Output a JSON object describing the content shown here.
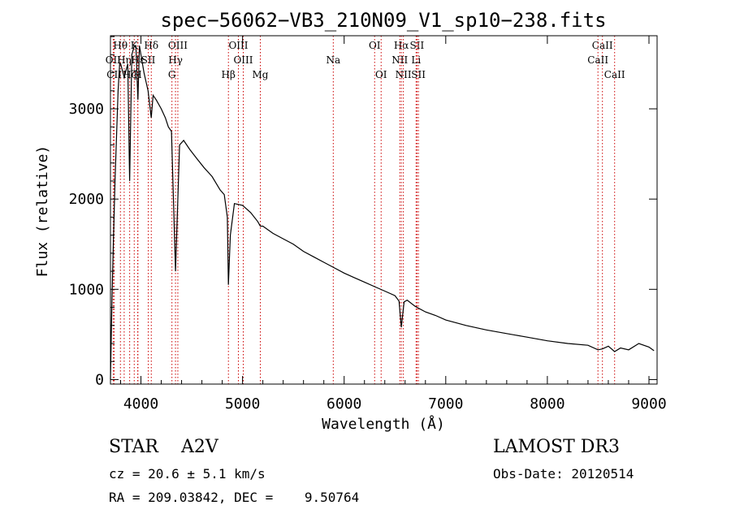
{
  "chart_data": {
    "type": "line",
    "title": "spec−56062−VB3_210N09_V1_sp10−238.fits",
    "xlabel": "Wavelength (Å)",
    "ylabel": "Flux (relative)",
    "xlim": [
      3700,
      9080
    ],
    "ylim": [
      -50,
      3810
    ],
    "xticks": [
      4000,
      5000,
      6000,
      7000,
      8000,
      9000
    ],
    "yticks": [
      0,
      1000,
      2000,
      3000
    ],
    "series": [
      {
        "name": "spectrum",
        "x": [
          3700,
          3715,
          3730,
          3745,
          3760,
          3775,
          3790,
          3800,
          3835,
          3870,
          3889,
          3910,
          3935,
          3950,
          3970,
          3985,
          4000,
          4030,
          4070,
          4101,
          4120,
          4150,
          4200,
          4240,
          4270,
          4300,
          4340,
          4380,
          4420,
          4480,
          4550,
          4620,
          4700,
          4780,
          4820,
          4850,
          4861,
          4880,
          4920,
          5000,
          5080,
          5150,
          5175,
          5200,
          5300,
          5400,
          5500,
          5600,
          5700,
          5800,
          5900,
          6000,
          6100,
          6200,
          6300,
          6400,
          6500,
          6540,
          6563,
          6590,
          6620,
          6700,
          6800,
          6900,
          7000,
          7200,
          7400,
          7600,
          7800,
          8000,
          8200,
          8400,
          8498,
          8542,
          8600,
          8662,
          8720,
          8800,
          8900,
          9000,
          9050
        ],
        "y": [
          0,
          900,
          1600,
          2200,
          2700,
          3200,
          3500,
          3500,
          3350,
          3500,
          2200,
          3600,
          3700,
          3700,
          3100,
          3700,
          3600,
          3400,
          3200,
          2900,
          3150,
          3100,
          3000,
          2900,
          2800,
          2750,
          1200,
          2600,
          2650,
          2550,
          2450,
          2350,
          2250,
          2100,
          2050,
          1800,
          1050,
          1600,
          1950,
          1930,
          1850,
          1750,
          1700,
          1700,
          1620,
          1560,
          1500,
          1420,
          1360,
          1300,
          1240,
          1180,
          1130,
          1080,
          1030,
          980,
          930,
          870,
          580,
          860,
          880,
          810,
          750,
          710,
          660,
          600,
          550,
          510,
          470,
          430,
          400,
          380,
          330,
          340,
          370,
          310,
          350,
          330,
          400,
          360,
          320
        ]
      }
    ],
    "lines": [
      {
        "label": "Hθ",
        "wavelength": 3798,
        "row": 0
      },
      {
        "label": "OII",
        "wavelength": 3727,
        "row": 1
      },
      {
        "label": "CII",
        "wavelength": 3737,
        "row": 2
      },
      {
        "label": "Hη",
        "wavelength": 3835,
        "row": 1
      },
      {
        "label": "Hζ",
        "wavelength": 3889,
        "row": 2
      },
      {
        "label": "K",
        "wavelength": 3934,
        "row": 0
      },
      {
        "label": "Hε",
        "wavelength": 3970,
        "row": 1
      },
      {
        "label": "H",
        "wavelength": 3968,
        "row": 2
      },
      {
        "label": "SII",
        "wavelength": 4072,
        "row": 1
      },
      {
        "label": "Hδ",
        "wavelength": 4102,
        "row": 0
      },
      {
        "label": "OIII",
        "wavelength": 4363,
        "row": 0
      },
      {
        "label": "Hγ",
        "wavelength": 4340,
        "row": 1
      },
      {
        "label": "G",
        "wavelength": 4305,
        "row": 2
      },
      {
        "label": "Hβ",
        "wavelength": 4861,
        "row": 2
      },
      {
        "label": "OIII",
        "wavelength": 4959,
        "row": 0
      },
      {
        "label": "OIII",
        "wavelength": 5007,
        "row": 1
      },
      {
        "label": "Mg",
        "wavelength": 5175,
        "row": 2
      },
      {
        "label": "Na",
        "wavelength": 5893,
        "row": 1
      },
      {
        "label": "OI",
        "wavelength": 6300,
        "row": 0
      },
      {
        "label": "OI",
        "wavelength": 6364,
        "row": 2
      },
      {
        "label": "Hα",
        "wavelength": 6563,
        "row": 0
      },
      {
        "label": "NII",
        "wavelength": 6548,
        "row": 1
      },
      {
        "label": "NII",
        "wavelength": 6583,
        "row": 2
      },
      {
        "label": "SII",
        "wavelength": 6717,
        "row": 0
      },
      {
        "label": "Li",
        "wavelength": 6708,
        "row": 1
      },
      {
        "label": "SII",
        "wavelength": 6731,
        "row": 2
      },
      {
        "label": "CaII",
        "wavelength": 8542,
        "row": 0
      },
      {
        "label": "CaII",
        "wavelength": 8498,
        "row": 1
      },
      {
        "label": "CaII",
        "wavelength": 8662,
        "row": 2
      }
    ]
  },
  "info": {
    "object_class": "STAR    A2V",
    "survey": "LAMOST DR3",
    "cz": "cz = 20.6 ± 5.1 km/s",
    "obs_date": "Obs-Date: 20120514",
    "ra_dec": "RA = 209.03842, DEC =    9.50764"
  },
  "colors": {
    "line_markers": "#cc0000",
    "spectrum": "#000000",
    "axes": "#000000"
  }
}
